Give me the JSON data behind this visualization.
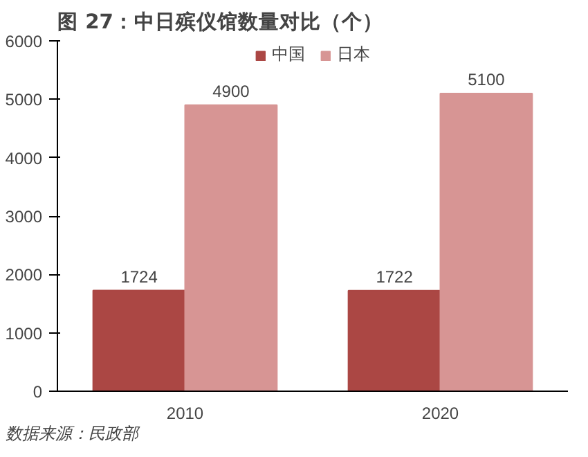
{
  "chart_data": {
    "type": "bar",
    "title": "图 27：中日殡仪馆数量对比（个）",
    "categories": [
      "2010",
      "2020"
    ],
    "series": [
      {
        "name": "中国",
        "color": "#ab4744",
        "values": [
          1724,
          1722
        ]
      },
      {
        "name": "日本",
        "color": "#d79594",
        "values": [
          4900,
          5100
        ]
      }
    ],
    "ylim": [
      0,
      6000
    ],
    "yticks": [
      0,
      1000,
      2000,
      3000,
      4000,
      5000,
      6000
    ],
    "grid": false,
    "legend": "top",
    "data_labels": true,
    "annotations": [
      "数据来源：民政部"
    ]
  }
}
